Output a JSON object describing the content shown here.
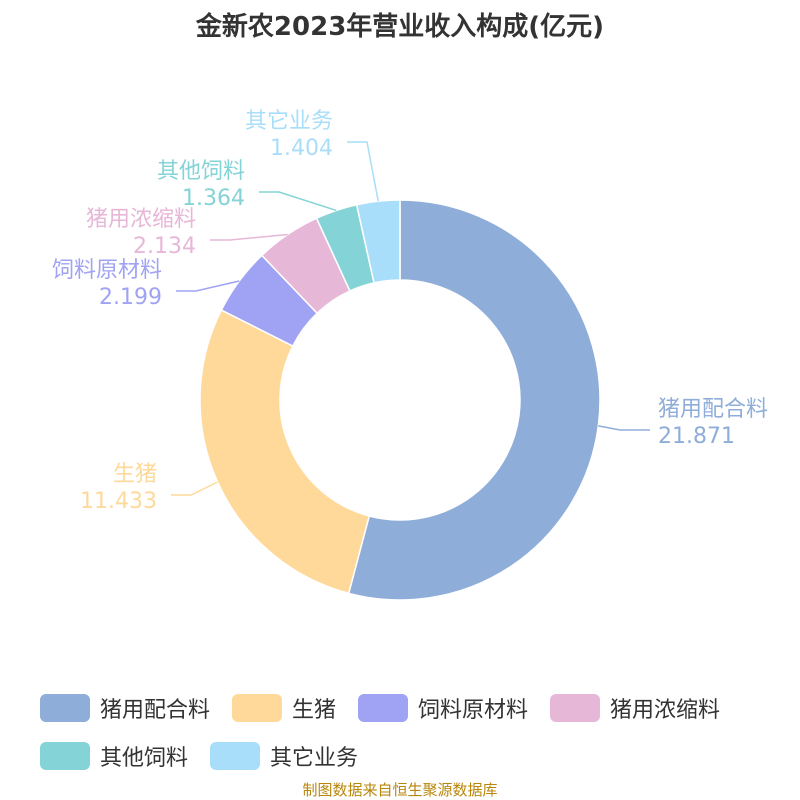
{
  "chart_data": {
    "type": "pie",
    "title": "金新农2023年营业收入构成(亿元)",
    "slices": [
      {
        "name": "猪用配合料",
        "value": 21.871,
        "value_label": "21.871",
        "color": "#8fadd9"
      },
      {
        "name": "生猪",
        "value": 11.433,
        "value_label": "11.433",
        "color": "#ffd99a"
      },
      {
        "name": "饲料原材料",
        "value": 2.199,
        "value_label": "2.199",
        "color": "#a0a3f4"
      },
      {
        "name": "猪用浓缩料",
        "value": 2.134,
        "value_label": "2.134",
        "color": "#e7b7d8"
      },
      {
        "name": "其他饲料",
        "value": 1.364,
        "value_label": "1.364",
        "color": "#84d3d6"
      },
      {
        "name": "其它业务",
        "value": 1.404,
        "value_label": "1.404",
        "color": "#a8def9"
      }
    ],
    "legend_position": "bottom"
  },
  "footer": {
    "source": "制图数据来自恒生聚源数据库"
  }
}
